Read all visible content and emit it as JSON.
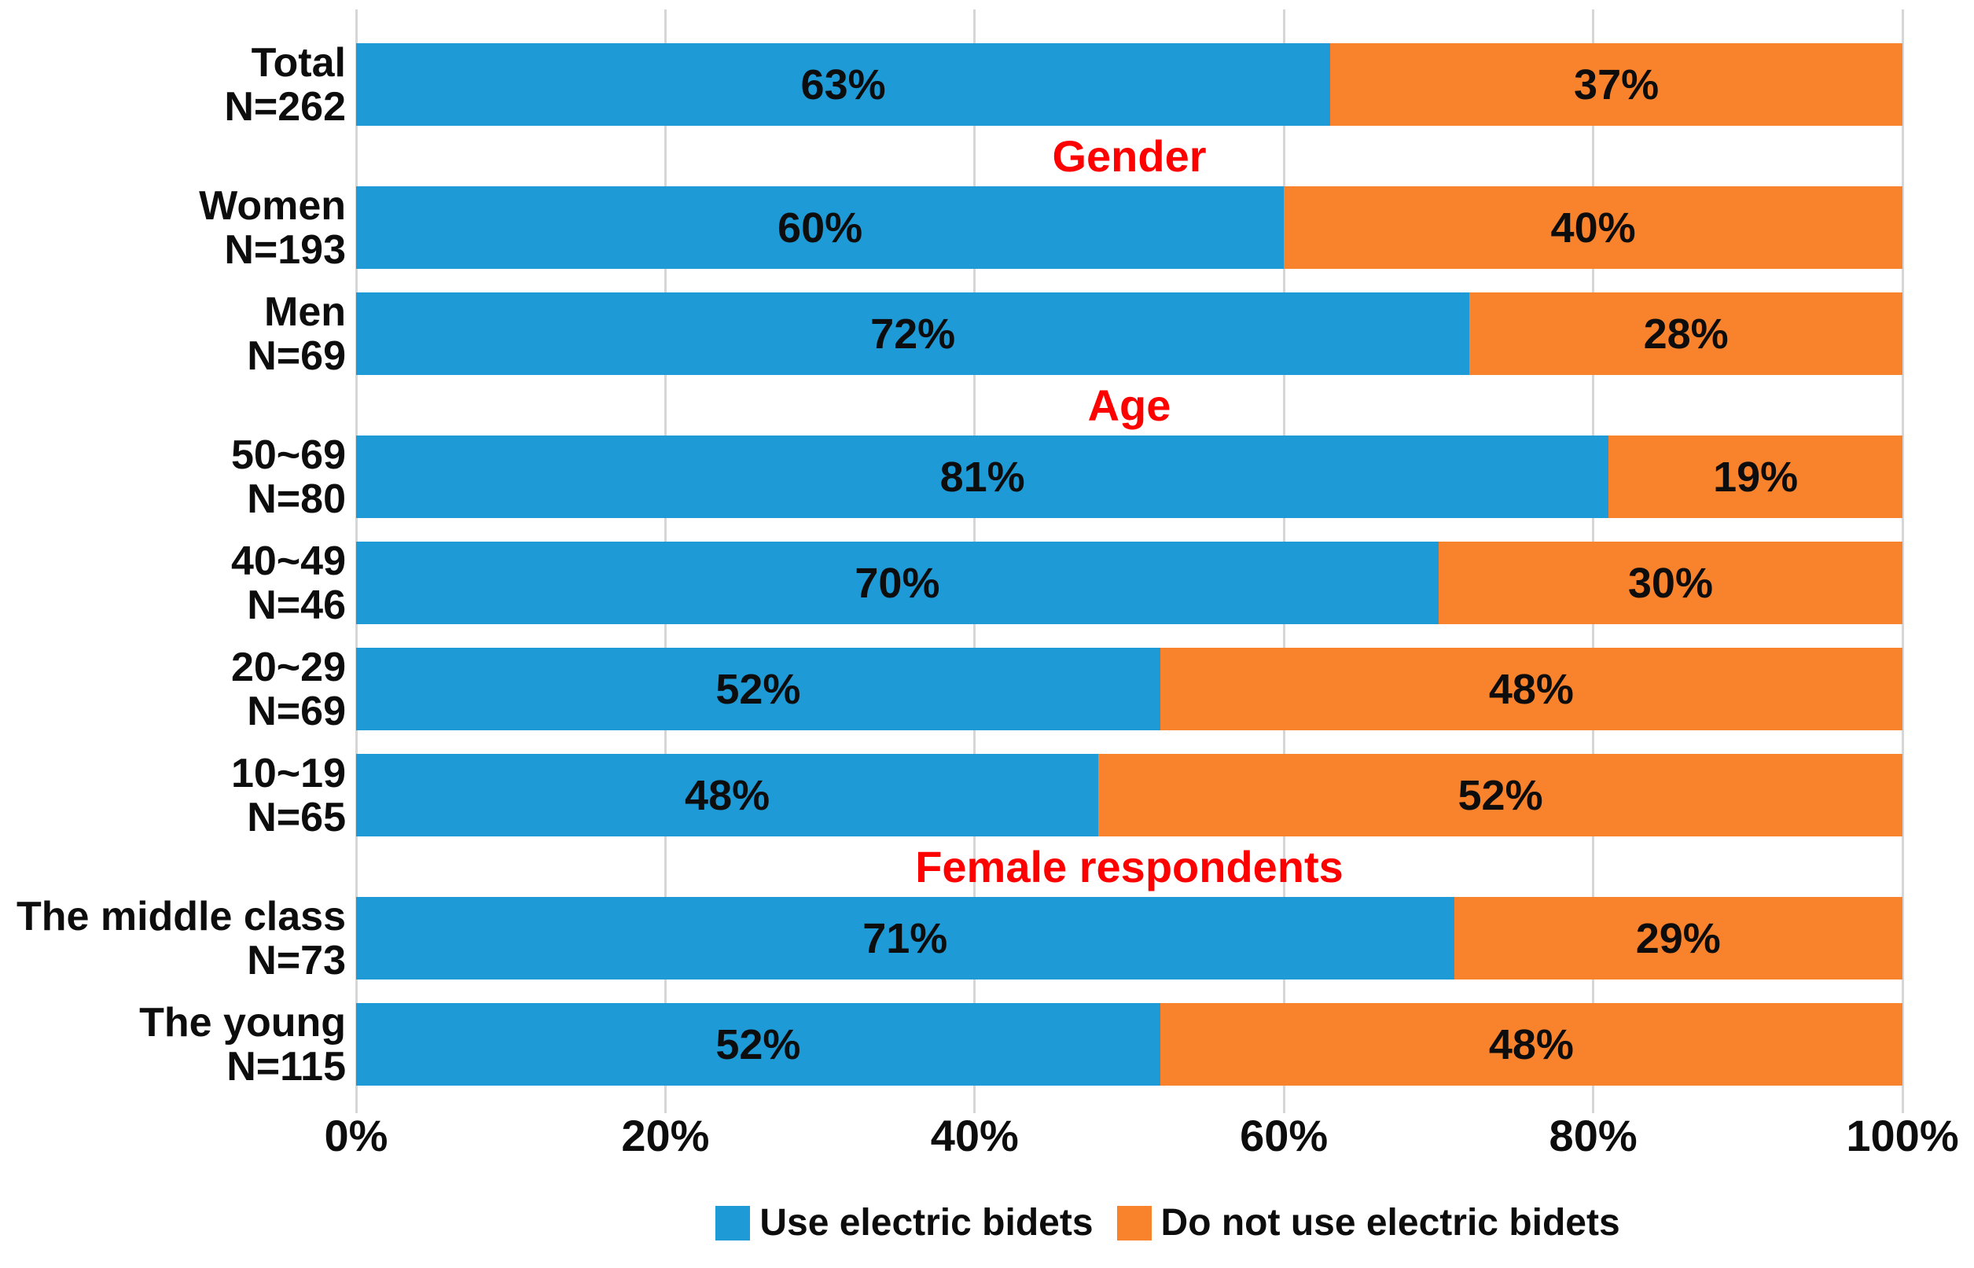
{
  "colors": {
    "use": "#1E9AD6",
    "not_use": "#F9822C",
    "section_header": "#FF0000",
    "grid": "#D6D6D6",
    "label_text": "#0D0D0D"
  },
  "rows": [
    {
      "type": "bar",
      "label": "Total",
      "n": "N=262",
      "use": 63,
      "not_use": 37
    },
    {
      "type": "header",
      "label": "Gender"
    },
    {
      "type": "bar",
      "label": "Women",
      "n": "N=193",
      "use": 60,
      "not_use": 40
    },
    {
      "type": "bar",
      "label": "Men",
      "n": "N=69",
      "use": 72,
      "not_use": 28
    },
    {
      "type": "header",
      "label": "Age"
    },
    {
      "type": "bar",
      "label": "50~69",
      "n": "N=80",
      "use": 81,
      "not_use": 19
    },
    {
      "type": "bar",
      "label": "40~49",
      "n": "N=46",
      "use": 70,
      "not_use": 30
    },
    {
      "type": "bar",
      "label": "20~29",
      "n": "N=69",
      "use": 52,
      "not_use": 48
    },
    {
      "type": "bar",
      "label": "10~19",
      "n": "N=65",
      "use": 48,
      "not_use": 52
    },
    {
      "type": "header",
      "label": "Female respondents"
    },
    {
      "type": "bar",
      "label": "The middle class",
      "n": "N=73",
      "use": 71,
      "not_use": 29
    },
    {
      "type": "bar",
      "label": "The young",
      "n": "N=115",
      "use": 52,
      "not_use": 48
    }
  ],
  "x_axis": {
    "ticks": [
      "0%",
      "20%",
      "40%",
      "60%",
      "80%",
      "100%"
    ],
    "tick_values": [
      0,
      20,
      40,
      60,
      80,
      100
    ]
  },
  "legend": [
    {
      "label": "Use electric bidets",
      "color_key": "use"
    },
    {
      "label": "Do not use electric bidets",
      "color_key": "not_use"
    }
  ],
  "chart_data": {
    "type": "bar",
    "orientation": "horizontal",
    "stacked": true,
    "unit": "%",
    "categories": [
      "Total N=262",
      "Women N=193",
      "Men N=69",
      "50~69 N=80",
      "40~49 N=46",
      "20~29 N=69",
      "10~19 N=65",
      "The middle class N=73",
      "The young N=115"
    ],
    "series": [
      {
        "name": "Use electric bidets",
        "color": "#1E9AD6",
        "values": [
          63,
          60,
          72,
          81,
          70,
          52,
          48,
          71,
          52
        ]
      },
      {
        "name": "Do not use electric bidets",
        "color": "#F9822C",
        "values": [
          37,
          40,
          28,
          19,
          30,
          48,
          52,
          29,
          48
        ]
      }
    ],
    "section_headers": [
      {
        "label": "Gender",
        "after_category": "Total N=262"
      },
      {
        "label": "Age",
        "after_category": "Men N=69"
      },
      {
        "label": "Female respondents",
        "after_category": "10~19 N=65"
      }
    ],
    "data_labels": "shown centered inside each segment",
    "xlim": [
      0,
      100
    ],
    "x_ticks": [
      "0%",
      "20%",
      "40%",
      "60%",
      "80%",
      "100%"
    ],
    "grid": "vertical gridlines at each 20%",
    "legend_position": "bottom"
  }
}
